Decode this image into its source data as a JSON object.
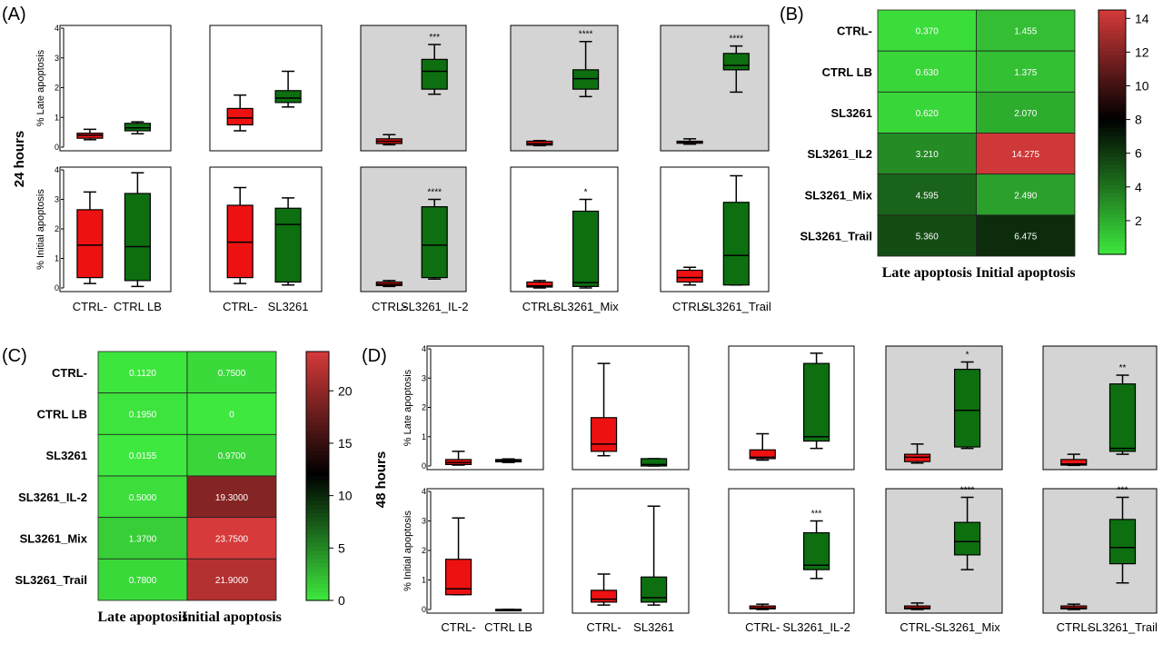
{
  "colors": {
    "red": "#ee1111",
    "green": "#0d6f10",
    "gray_panel": "#d4d4d4",
    "heat_low": "#3ee83e",
    "heat_mid": "#000000",
    "heat_high": "#d63a3a"
  },
  "panel_labels": {
    "A": "(A)",
    "B": "(B)",
    "C": "(C)",
    "D": "(D)"
  },
  "time_labels": {
    "h24": "24 hours",
    "h48": "48 hours"
  },
  "chart_data": [
    {
      "panel": "A",
      "type": "box",
      "row_ylabels": [
        "% Late apoptosis",
        "% Initial apoptosis"
      ],
      "ylim": [
        0,
        4
      ],
      "yticks": [
        0,
        1,
        2,
        3,
        4
      ],
      "groups": [
        {
          "categories": [
            "CTRL-",
            "CTRL LB"
          ],
          "shaded": [
            false,
            false
          ],
          "late": {
            "sig": "",
            "boxes": [
              {
                "min": 0.25,
                "q1": 0.3,
                "median": 0.4,
                "q3": 0.47,
                "max": 0.6
              },
              {
                "min": 0.45,
                "q1": 0.55,
                "median": 0.65,
                "q3": 0.8,
                "max": 0.85
              }
            ]
          },
          "initial": {
            "sig": "",
            "boxes": [
              {
                "min": 0.15,
                "q1": 0.35,
                "median": 1.45,
                "q3": 2.65,
                "max": 3.25
              },
              {
                "min": 0.05,
                "q1": 0.25,
                "median": 1.4,
                "q3": 3.2,
                "max": 3.9
              }
            ]
          }
        },
        {
          "categories": [
            "CTRL-",
            "SL3261"
          ],
          "shaded": [
            false,
            false
          ],
          "late": {
            "sig": "",
            "boxes": [
              {
                "min": 0.55,
                "q1": 0.75,
                "median": 0.98,
                "q3": 1.3,
                "max": 1.75
              },
              {
                "min": 1.35,
                "q1": 1.5,
                "median": 1.65,
                "q3": 1.9,
                "max": 2.55
              }
            ]
          },
          "initial": {
            "sig": "",
            "boxes": [
              {
                "min": 0.15,
                "q1": 0.35,
                "median": 1.55,
                "q3": 2.8,
                "max": 3.4
              },
              {
                "min": 0.1,
                "q1": 0.2,
                "median": 2.15,
                "q3": 2.7,
                "max": 3.05
              }
            ]
          }
        },
        {
          "categories": [
            "CTRL-",
            "SL3261_IL-2"
          ],
          "shaded": [
            true,
            true
          ],
          "late": {
            "sig": "***",
            "boxes": [
              {
                "min": 0.08,
                "q1": 0.12,
                "median": 0.2,
                "q3": 0.28,
                "max": 0.42
              },
              {
                "min": 1.78,
                "q1": 1.95,
                "median": 2.55,
                "q3": 2.95,
                "max": 3.45
              }
            ]
          },
          "initial": {
            "sig": "****",
            "boxes": [
              {
                "min": 0.05,
                "q1": 0.08,
                "median": 0.13,
                "q3": 0.2,
                "max": 0.25
              },
              {
                "min": 0.3,
                "q1": 0.35,
                "median": 1.45,
                "q3": 2.75,
                "max": 3.0
              }
            ]
          }
        },
        {
          "categories": [
            "CTRL-",
            "SL3261_Mix"
          ],
          "shaded": [
            true,
            false
          ],
          "late": {
            "sig": "****",
            "boxes": [
              {
                "min": 0.05,
                "q1": 0.07,
                "median": 0.12,
                "q3": 0.2,
                "max": 0.22
              },
              {
                "min": 1.7,
                "q1": 1.95,
                "median": 2.3,
                "q3": 2.6,
                "max": 3.55
              }
            ]
          },
          "initial": {
            "sig": "*",
            "boxes": [
              {
                "min": 0.0,
                "q1": 0.03,
                "median": 0.07,
                "q3": 0.2,
                "max": 0.25
              },
              {
                "min": 0.0,
                "q1": 0.05,
                "median": 0.18,
                "q3": 2.6,
                "max": 3.0
              }
            ]
          }
        },
        {
          "categories": [
            "CTRL-",
            "SL3261_Trail"
          ],
          "shaded": [
            true,
            false
          ],
          "late": {
            "sig": "****",
            "boxes": [
              {
                "min": 0.1,
                "q1": 0.13,
                "median": 0.17,
                "q3": 0.2,
                "max": 0.28
              },
              {
                "min": 1.85,
                "q1": 2.6,
                "median": 2.75,
                "q3": 3.15,
                "max": 3.4
              }
            ]
          },
          "initial": {
            "sig": "",
            "boxes": [
              {
                "min": 0.1,
                "q1": 0.2,
                "median": 0.35,
                "q3": 0.6,
                "max": 0.7
              },
              {
                "min": 0.1,
                "q1": 0.1,
                "median": 1.1,
                "q3": 2.9,
                "max": 3.8
              }
            ]
          }
        }
      ]
    },
    {
      "panel": "B",
      "type": "heatmap",
      "rows": [
        "CTRL-",
        "CTRL LB",
        "SL3261",
        "SL3261_IL2",
        "SL3261_Mix",
        "SL3261_Trail"
      ],
      "columns": [
        "Late apoptosis",
        "Initial apoptosis"
      ],
      "values": [
        [
          "0.370",
          "1.455"
        ],
        [
          "0.630",
          "1.375"
        ],
        [
          "0.620",
          "2.070"
        ],
        [
          "3.210",
          "14.275"
        ],
        [
          "4.595",
          "2.490"
        ],
        [
          "5.360",
          "6.475"
        ]
      ],
      "colorbar": {
        "min": 0,
        "mid": 8,
        "max": 14.5,
        "ticks": [
          "14",
          "12",
          "10",
          "8",
          "6",
          "4",
          "2"
        ],
        "tick_values": [
          14,
          12,
          10,
          8,
          6,
          4,
          2
        ]
      }
    },
    {
      "panel": "C",
      "type": "heatmap",
      "rows": [
        "CTRL-",
        "CTRL LB",
        "SL3261",
        "SL3261_IL-2",
        "SL3261_Mix",
        "SL3261_Trail"
      ],
      "columns": [
        "Late apoptosis",
        "Initial apoptosis"
      ],
      "values": [
        [
          "0.1120",
          "0.7500"
        ],
        [
          "0.1950",
          "0"
        ],
        [
          "0.0155",
          "0.9700"
        ],
        [
          "0.5000",
          "19.3000"
        ],
        [
          "1.3700",
          "23.7500"
        ],
        [
          "0.7800",
          "21.9000"
        ]
      ],
      "colorbar": {
        "min": 0,
        "mid": 12,
        "max": 23.75,
        "ticks": [
          "20",
          "15",
          "10",
          "5",
          "0"
        ],
        "tick_values": [
          20,
          15,
          10,
          5,
          0
        ]
      }
    },
    {
      "panel": "D",
      "type": "box",
      "row_ylabels": [
        "% Late apoptosis",
        "% Initial apoptosis"
      ],
      "ylim": [
        0,
        4
      ],
      "yticks": [
        0,
        1,
        2,
        3,
        4
      ],
      "groups": [
        {
          "categories": [
            "CTRL-",
            "CTRL LB"
          ],
          "shaded": [
            false,
            false
          ],
          "late": {
            "sig": "",
            "boxes": [
              {
                "min": 0.03,
                "q1": 0.05,
                "median": 0.12,
                "q3": 0.22,
                "max": 0.5
              },
              {
                "min": 0.12,
                "q1": 0.14,
                "median": 0.18,
                "q3": 0.22,
                "max": 0.24
              }
            ]
          },
          "initial": {
            "sig": "",
            "boxes": [
              {
                "min": 0.5,
                "q1": 0.5,
                "median": 0.7,
                "q3": 1.7,
                "max": 3.1
              },
              {
                "min": 0.0,
                "q1": 0.0,
                "median": 0.0,
                "q3": 0.0,
                "max": 0.0
              }
            ]
          }
        },
        {
          "categories": [
            "CTRL-",
            "SL3261"
          ],
          "shaded": [
            false,
            false
          ],
          "late": {
            "sig": "",
            "boxes": [
              {
                "min": 0.35,
                "q1": 0.5,
                "median": 0.75,
                "q3": 1.65,
                "max": 3.5
              },
              {
                "min": 0.0,
                "q1": 0.0,
                "median": 0.05,
                "q3": 0.25,
                "max": 0.25
              }
            ]
          },
          "initial": {
            "sig": "",
            "boxes": [
              {
                "min": 0.15,
                "q1": 0.25,
                "median": 0.35,
                "q3": 0.65,
                "max": 1.2
              },
              {
                "min": 0.15,
                "q1": 0.25,
                "median": 0.4,
                "q3": 1.1,
                "max": 3.5
              }
            ]
          }
        },
        {
          "categories": [
            "CTRL-",
            "SL3261_IL-2"
          ],
          "shaded": [
            false,
            false
          ],
          "late": {
            "sig": "",
            "boxes": [
              {
                "min": 0.2,
                "q1": 0.25,
                "median": 0.3,
                "q3": 0.55,
                "max": 1.1
              },
              {
                "min": 0.6,
                "q1": 0.85,
                "median": 1.0,
                "q3": 3.5,
                "max": 3.85
              }
            ]
          },
          "initial": {
            "sig": "***",
            "boxes": [
              {
                "min": 0.0,
                "q1": 0.02,
                "median": 0.05,
                "q3": 0.12,
                "max": 0.18
              },
              {
                "min": 1.05,
                "q1": 1.35,
                "median": 1.5,
                "q3": 2.6,
                "max": 3.0
              }
            ]
          }
        },
        {
          "categories": [
            "CTRL-",
            "SL3261_Mix"
          ],
          "shaded": [
            true,
            true
          ],
          "late": {
            "sig": "*",
            "boxes": [
              {
                "min": 0.1,
                "q1": 0.15,
                "median": 0.3,
                "q3": 0.4,
                "max": 0.75
              },
              {
                "min": 0.6,
                "q1": 0.65,
                "median": 1.9,
                "q3": 3.3,
                "max": 3.55
              }
            ]
          },
          "initial": {
            "sig": "****",
            "boxes": [
              {
                "min": 0.0,
                "q1": 0.02,
                "median": 0.05,
                "q3": 0.12,
                "max": 0.22
              },
              {
                "min": 1.35,
                "q1": 1.85,
                "median": 2.3,
                "q3": 2.95,
                "max": 3.8
              }
            ]
          }
        },
        {
          "categories": [
            "CTRL-",
            "SL3261_Trail"
          ],
          "shaded": [
            true,
            true
          ],
          "late": {
            "sig": "**",
            "boxes": [
              {
                "min": 0.02,
                "q1": 0.03,
                "median": 0.07,
                "q3": 0.22,
                "max": 0.4
              },
              {
                "min": 0.4,
                "q1": 0.5,
                "median": 0.6,
                "q3": 2.8,
                "max": 3.1
              }
            ]
          },
          "initial": {
            "sig": "***",
            "boxes": [
              {
                "min": 0.0,
                "q1": 0.02,
                "median": 0.05,
                "q3": 0.12,
                "max": 0.18
              },
              {
                "min": 0.9,
                "q1": 1.55,
                "median": 2.1,
                "q3": 3.05,
                "max": 3.8
              }
            ]
          }
        }
      ]
    }
  ]
}
